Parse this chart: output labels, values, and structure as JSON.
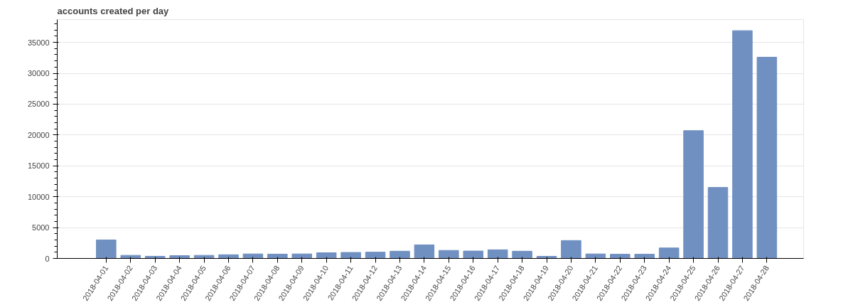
{
  "chart_data": {
    "type": "bar",
    "title": "accounts created per day",
    "categories": [
      "2018-04-01",
      "2018-04-02",
      "2018-04-03",
      "2018-04-04",
      "2018-04-05",
      "2018-04-06",
      "2018-04-07",
      "2018-04-08",
      "2018-04-09",
      "2018-04-10",
      "2018-04-11",
      "2018-04-12",
      "2018-04-13",
      "2018-04-14",
      "2018-04-15",
      "2018-04-16",
      "2018-04-17",
      "2018-04-18",
      "2018-04-19",
      "2018-04-20",
      "2018-04-21",
      "2018-04-22",
      "2018-04-23",
      "2018-04-24",
      "2018-04-25",
      "2018-04-26",
      "2018-04-27",
      "2018-04-28"
    ],
    "values": [
      3000,
      500,
      350,
      450,
      500,
      600,
      730,
      700,
      730,
      920,
      970,
      1020,
      1170,
      2200,
      1300,
      1200,
      1400,
      1170,
      340,
      2900,
      730,
      680,
      680,
      1700,
      20700,
      11500,
      36900,
      32600
    ],
    "color": "#7090c2",
    "ylim": [
      0,
      38700
    ],
    "yticks": [
      0,
      5000,
      10000,
      15000,
      20000,
      25000,
      30000,
      35000
    ],
    "grid": "y"
  }
}
